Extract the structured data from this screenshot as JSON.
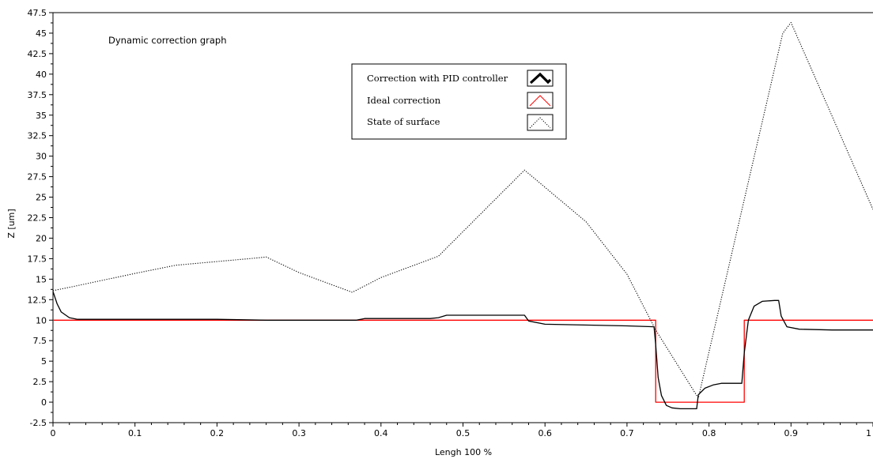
{
  "chart_data": {
    "type": "line",
    "title": "Dynamic correction graph",
    "xlabel": "Lengh 100 %",
    "ylabel": "Z [um]",
    "xlim": [
      0,
      1.0
    ],
    "ylim": [
      -2.5,
      47.5
    ],
    "xticks": [
      0,
      0.1,
      0.2,
      0.3,
      0.4,
      0.5,
      0.6,
      0.7,
      0.8,
      0.9,
      1.0
    ],
    "xtick_labels": [
      "0",
      "0.1",
      "0.2",
      "0.3",
      "0.4",
      "0.5",
      "0.6",
      "0.7",
      "0.8",
      "0.9",
      "1"
    ],
    "yticks": [
      -2.5,
      0,
      2.5,
      5,
      7.5,
      10,
      12.5,
      15,
      17.5,
      20,
      22.5,
      25,
      27.5,
      30,
      32.5,
      35,
      37.5,
      40,
      42.5,
      45,
      47.5
    ],
    "ytick_labels": [
      "-2.5",
      "0",
      "2.5",
      "5",
      "7.5",
      "10",
      "12.5",
      "15",
      "17.5",
      "20",
      "22.5",
      "25",
      "27.5",
      "30",
      "32.5",
      "35",
      "37.5",
      "40",
      "42.5",
      "45",
      "47.5"
    ],
    "grid": false,
    "legend_position": "top-center",
    "series": [
      {
        "name": "Correction with PID controller",
        "color": "#000000",
        "style": "solid",
        "x": [
          0,
          0.005,
          0.01,
          0.02,
          0.03,
          0.1,
          0.2,
          0.26,
          0.3,
          0.37,
          0.38,
          0.46,
          0.47,
          0.48,
          0.5,
          0.575,
          0.58,
          0.6,
          0.7,
          0.733,
          0.735,
          0.738,
          0.742,
          0.748,
          0.755,
          0.765,
          0.785,
          0.787,
          0.795,
          0.805,
          0.815,
          0.84,
          0.843,
          0.848,
          0.855,
          0.865,
          0.88,
          0.885,
          0.888,
          0.895,
          0.91,
          0.95,
          1.0
        ],
        "y": [
          13.5,
          12.0,
          11.0,
          10.3,
          10.1,
          10.1,
          10.1,
          10.0,
          10.0,
          10.0,
          10.2,
          10.2,
          10.3,
          10.6,
          10.6,
          10.6,
          9.9,
          9.5,
          9.3,
          9.2,
          7.0,
          3.0,
          0.8,
          -0.4,
          -0.7,
          -0.8,
          -0.8,
          0.9,
          1.7,
          2.1,
          2.3,
          2.3,
          6.0,
          10.0,
          11.7,
          12.3,
          12.4,
          12.4,
          10.5,
          9.2,
          8.9,
          8.8,
          8.8
        ]
      },
      {
        "name": "Ideal correction",
        "color": "#ff0000",
        "style": "solid",
        "x": [
          0,
          0.735,
          0.735,
          0.843,
          0.843,
          1.0
        ],
        "y": [
          10,
          10,
          0,
          0,
          10,
          10
        ]
      },
      {
        "name": "State of surface",
        "color": "#000000",
        "style": "dotted",
        "x": [
          0,
          0.02,
          0.1,
          0.15,
          0.25,
          0.26,
          0.3,
          0.365,
          0.4,
          0.47,
          0.575,
          0.65,
          0.7,
          0.735,
          0.787,
          0.89,
          0.9,
          1.0
        ],
        "y": [
          13.6,
          14.0,
          15.7,
          16.7,
          17.6,
          17.7,
          15.8,
          13.4,
          15.2,
          17.8,
          28.3,
          22.0,
          15.6,
          8.8,
          0.5,
          45.0,
          46.3,
          23.5
        ]
      }
    ]
  }
}
